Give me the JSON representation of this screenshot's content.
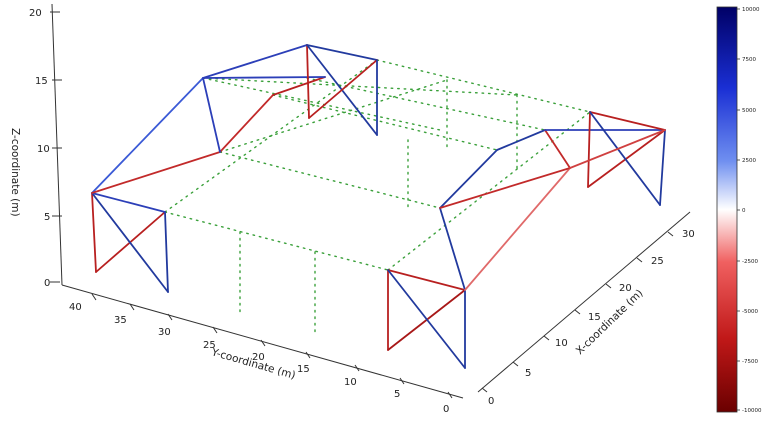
{
  "axes": {
    "z_label": "Z-coordinate (m)",
    "y_label": "Y-coordinate (m)",
    "x_label": "X-coordinate (m)",
    "z_ticks": [
      "0",
      "5",
      "10",
      "15",
      "20"
    ],
    "y_ticks": [
      "40",
      "35",
      "30",
      "25",
      "20",
      "15",
      "10",
      "5",
      "0"
    ],
    "x_ticks": [
      "0",
      "5",
      "10",
      "15",
      "20",
      "25",
      "30"
    ]
  },
  "colorbar": {
    "ticks": [
      "10000",
      "7500",
      "5000",
      "2500",
      "0",
      "-2500",
      "-5000",
      "-7500",
      "-10000"
    ],
    "colors": [
      "#000066",
      "#1a2fd4",
      "#6f8ff0",
      "#ffffff",
      "#f06060",
      "#c01818",
      "#6a0000"
    ]
  },
  "legend_colors": {
    "tension": "#2c3fb8",
    "compression": "#c22a2a",
    "bracing": "#3aa03a"
  }
}
